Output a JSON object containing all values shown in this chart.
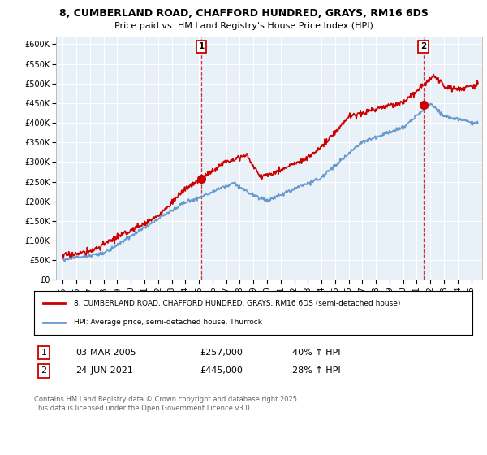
{
  "title_line1": "8, CUMBERLAND ROAD, CHAFFORD HUNDRED, GRAYS, RM16 6DS",
  "title_line2": "Price paid vs. HM Land Registry's House Price Index (HPI)",
  "ylim": [
    0,
    620000
  ],
  "yticks": [
    0,
    50000,
    100000,
    150000,
    200000,
    250000,
    300000,
    350000,
    400000,
    450000,
    500000,
    550000,
    600000
  ],
  "sale1": {
    "date_num": 2005.17,
    "price": 257000,
    "label": "1",
    "date_str": "03-MAR-2005",
    "pct": "40%"
  },
  "sale2": {
    "date_num": 2021.48,
    "price": 445000,
    "label": "2",
    "date_str": "24-JUN-2021",
    "pct": "28%"
  },
  "line1_color": "#cc0000",
  "line2_color": "#6699cc",
  "legend_label1": "8, CUMBERLAND ROAD, CHAFFORD HUNDRED, GRAYS, RM16 6DS (semi-detached house)",
  "legend_label2": "HPI: Average price, semi-detached house, Thurrock",
  "footer": "Contains HM Land Registry data © Crown copyright and database right 2025.\nThis data is licensed under the Open Government Licence v3.0.",
  "bg_color": "#ffffff",
  "plot_bg_color": "#e8f0f8",
  "grid_color": "#ffffff"
}
